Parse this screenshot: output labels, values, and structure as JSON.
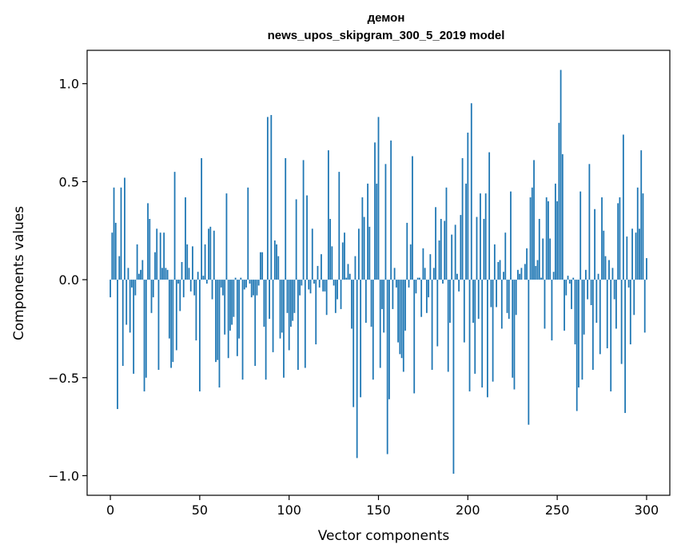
{
  "chart_data": {
    "type": "bar",
    "title": "демон",
    "subtitle": "news_upos_skipgram_300_5_2019 model",
    "xlabel": "Vector components",
    "ylabel": "Components values",
    "xlim": [
      -13,
      313
    ],
    "ylim": [
      -1.1,
      1.17
    ],
    "xticks": [
      0,
      50,
      100,
      150,
      200,
      250,
      300
    ],
    "xtick_labels": [
      "0",
      "50",
      "100",
      "150",
      "200",
      "250",
      "300"
    ],
    "yticks": [
      -1.0,
      -0.5,
      0.0,
      0.5,
      1.0
    ],
    "ytick_labels": [
      "−1.0",
      "−0.5",
      "0.0",
      "0.5",
      "1.0"
    ],
    "grid": false,
    "bar_color": "#1f77b4",
    "values": [
      -0.09,
      0.24,
      0.47,
      0.29,
      -0.66,
      0.12,
      0.47,
      -0.44,
      0.52,
      -0.23,
      0.06,
      -0.27,
      -0.04,
      -0.48,
      -0.08,
      0.18,
      0.03,
      0.05,
      0.1,
      -0.57,
      -0.5,
      0.39,
      0.31,
      -0.17,
      -0.09,
      0.14,
      0.26,
      -0.46,
      0.24,
      0.06,
      0.24,
      0.06,
      0.05,
      -0.3,
      -0.45,
      -0.42,
      0.55,
      -0.36,
      -0.02,
      -0.16,
      0.09,
      -0.09,
      0.42,
      0.18,
      0.06,
      -0.06,
      0.17,
      -0.08,
      -0.31,
      0.04,
      -0.57,
      0.62,
      0.02,
      0.18,
      -0.02,
      0.26,
      0.27,
      -0.1,
      0.25,
      -0.42,
      -0.41,
      -0.55,
      -0.04,
      -0.08,
      -0.28,
      0.44,
      -0.4,
      -0.26,
      -0.23,
      -0.19,
      0.01,
      -0.39,
      -0.3,
      0.01,
      -0.51,
      -0.05,
      -0.04,
      0.47,
      -0.02,
      -0.09,
      -0.08,
      -0.44,
      -0.08,
      -0.03,
      0.14,
      0.14,
      -0.24,
      -0.51,
      0.83,
      -0.2,
      0.84,
      -0.37,
      0.2,
      0.18,
      0.12,
      -0.3,
      -0.27,
      -0.5,
      0.62,
      -0.17,
      -0.36,
      -0.24,
      -0.21,
      -0.17,
      0.41,
      -0.46,
      -0.08,
      -0.03,
      0.61,
      -0.45,
      0.43,
      -0.05,
      -0.07,
      0.26,
      -0.02,
      -0.33,
      0.07,
      -0.04,
      0.13,
      -0.06,
      -0.06,
      -0.18,
      0.66,
      0.31,
      0.17,
      -0.03,
      -0.17,
      -0.1,
      0.55,
      -0.15,
      0.19,
      0.24,
      0.01,
      0.08,
      0.03,
      -0.25,
      -0.65,
      0.12,
      -0.91,
      0.26,
      -0.6,
      0.42,
      0.32,
      -0.22,
      0.49,
      0.27,
      -0.24,
      -0.51,
      0.7,
      0.49,
      0.83,
      -0.45,
      -0.15,
      -0.27,
      0.59,
      -0.89,
      -0.61,
      0.71,
      -0.15,
      0.06,
      -0.04,
      -0.32,
      -0.38,
      -0.4,
      -0.47,
      -0.26,
      0.29,
      -0.04,
      0.18,
      0.63,
      -0.58,
      -0.07,
      0.01,
      0.01,
      -0.19,
      0.16,
      0.06,
      -0.17,
      -0.09,
      0.13,
      -0.46,
      0.06,
      0.37,
      -0.34,
      0.2,
      0.31,
      -0.02,
      0.3,
      0.47,
      -0.47,
      -0.22,
      0.23,
      -0.99,
      0.28,
      0.03,
      -0.06,
      0.33,
      0.62,
      -0.32,
      0.49,
      0.75,
      -0.57,
      0.9,
      -0.22,
      -0.48,
      0.32,
      -0.2,
      0.44,
      -0.55,
      0.31,
      0.44,
      -0.6,
      0.65,
      -0.14,
      -0.52,
      0.18,
      -0.14,
      0.09,
      0.1,
      -0.25,
      0.04,
      0.24,
      -0.17,
      -0.2,
      0.45,
      -0.5,
      -0.56,
      -0.18,
      0.05,
      0.03,
      0.06,
      0.0,
      0.08,
      0.16,
      -0.74,
      0.42,
      0.47,
      0.61,
      0.07,
      0.1,
      0.31,
      0.01,
      0.21,
      -0.25,
      0.42,
      0.4,
      0.21,
      -0.31,
      0.04,
      0.49,
      0.4,
      0.8,
      1.07,
      0.64,
      -0.26,
      -0.08,
      0.02,
      -0.02,
      -0.15,
      0.01,
      -0.33,
      -0.67,
      -0.55,
      0.45,
      -0.51,
      -0.28,
      0.05,
      -0.1,
      0.59,
      -0.13,
      -0.46,
      0.36,
      -0.22,
      0.03,
      -0.38,
      0.42,
      0.25,
      0.12,
      -0.35,
      0.1,
      -0.57,
      0.06,
      -0.1,
      -0.25,
      0.39,
      0.42,
      -0.43,
      0.74,
      -0.68,
      0.22,
      -0.04,
      -0.33,
      0.26,
      -0.18,
      0.24,
      0.47,
      0.26,
      0.66,
      0.44,
      -0.27,
      0.11
    ]
  }
}
